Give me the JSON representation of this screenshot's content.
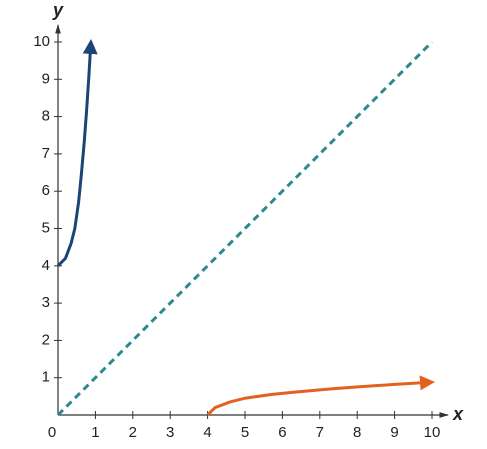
{
  "chart_data": {
    "type": "line",
    "x_label": "x",
    "y_label": "y",
    "xlim": [
      0,
      10
    ],
    "ylim": [
      0,
      10
    ],
    "xticks": [
      0,
      1,
      2,
      3,
      4,
      5,
      6,
      7,
      8,
      9,
      10
    ],
    "yticks": [
      1,
      2,
      3,
      4,
      5,
      6,
      7,
      8,
      9,
      10
    ],
    "series": [
      {
        "color": "#1c4475",
        "dashed": false,
        "arrow": true,
        "x": [
          0,
          0.2,
          0.35,
          0.45,
          0.55,
          0.62,
          0.7,
          0.76,
          0.82,
          0.88
        ],
        "values": [
          4,
          4.2,
          4.6,
          5,
          5.7,
          6.4,
          7.3,
          8.1,
          9,
          10
        ]
      },
      {
        "color": "#e2611f",
        "dashed": false,
        "arrow": true,
        "x": [
          4,
          4.2,
          4.6,
          5,
          5.7,
          6.4,
          7.3,
          8.1,
          9,
          10
        ],
        "values": [
          0,
          0.2,
          0.35,
          0.45,
          0.55,
          0.62,
          0.7,
          0.76,
          0.82,
          0.88
        ]
      },
      {
        "color": "#2a8a8c",
        "dashed": true,
        "arrow": false,
        "x": [
          0,
          10
        ],
        "values": [
          0,
          10
        ]
      }
    ]
  }
}
